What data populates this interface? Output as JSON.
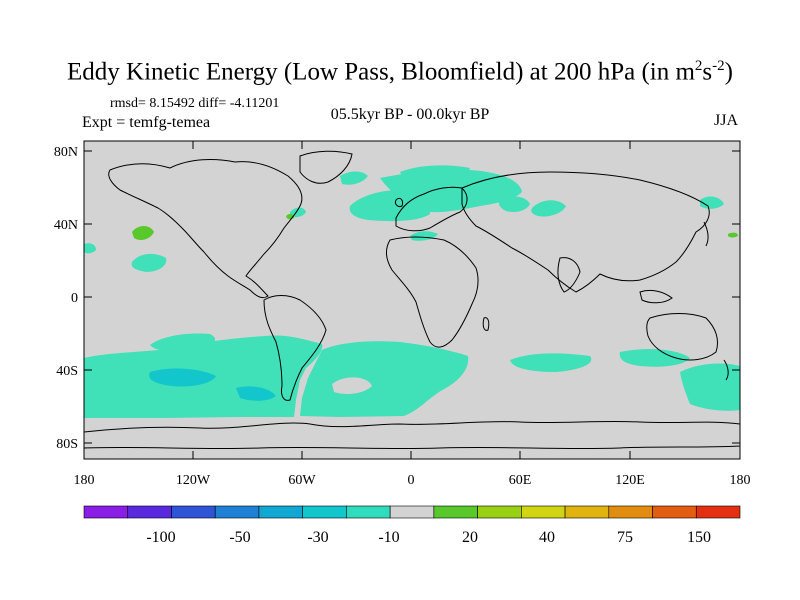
{
  "title": {
    "main": "Eddy Kinetic Energy (Low Pass, Bloomfield) at 200 hPa (in m",
    "sup1": "2",
    "mid": "s",
    "sup2": "-2",
    "end": ")"
  },
  "stats": "rmsd= 8.15492 diff= -4.11201",
  "experiment": "Expt = temfg-temea",
  "period": "05.5kyr BP - 00.0kyr BP",
  "season": "JJA",
  "axes": {
    "y_ticks": [
      "80N",
      "40N",
      "0",
      "40S",
      "80S"
    ],
    "x_ticks": [
      "180",
      "120W",
      "60W",
      "0",
      "60E",
      "120E",
      "180"
    ]
  },
  "colors": {
    "background": "#d3d3d3",
    "land_outline": "#000000",
    "anomaly_minus10": "#40e0b8",
    "anomaly_plus20": "#58c82a"
  },
  "colorbar": {
    "colors": [
      "#8a1ee6",
      "#5a28de",
      "#2e54d8",
      "#1e80d6",
      "#12a6d2",
      "#12c6cc",
      "#30dcc0",
      "#d3d3d3",
      "#58c82a",
      "#9ad014",
      "#d0d412",
      "#e0b410",
      "#e28c10",
      "#e25c12",
      "#e23010"
    ],
    "labels": [
      "-100",
      "-50",
      "-30",
      "-10",
      "20",
      "40",
      "75",
      "150"
    ]
  }
}
